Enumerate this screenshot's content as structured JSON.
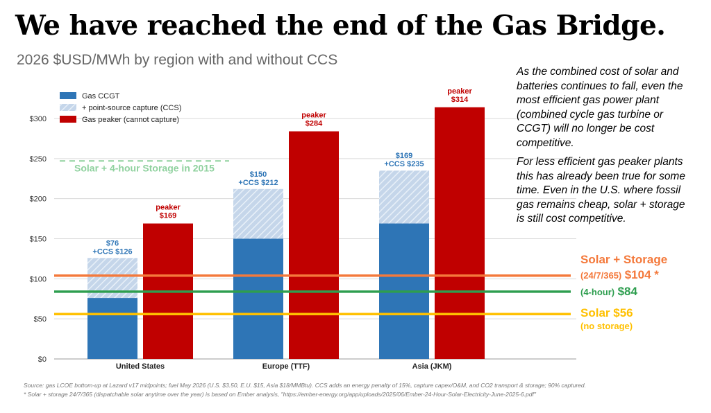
{
  "title": "We have reached the end of the Gas Bridge.",
  "subtitle": "2026 $USD/MWh by region with and without CCS",
  "side_text": {
    "p1": "As the combined cost of solar and batteries continues to fall, even the most efficient gas power plant (combined cycle gas turbine or CCGT) will no longer be cost competitive.",
    "p2": "For less efficient gas peaker plants this has already been true for some time. Even in the U.S. where fossil gas remains cheap, solar + storage is still cost competitive."
  },
  "reference_labels": {
    "storage_title": "Solar + Storage",
    "storage_247_prefix": "(24/7/365)",
    "storage_247_value": "$104 *",
    "storage_4h_prefix": "(4-hour)",
    "storage_4h_value": "$84",
    "solar_title": "Solar $56",
    "solar_sub": "(no storage)",
    "solar_2015": "Solar + 4-hour Storage in 2015"
  },
  "source_lines": [
    "Source: gas LCOE bottom-up at Lazard v17 midpoints; fuel May 2026 (U.S. $3.50, E.U. $15, Asia $18/MMBtu). CCS adds an energy penalty of 15%, capture capex/O&M, and CO2 transport & storage; 90% captured.",
    "* Solar + storage 24/7/365 (dispatchable solar anytime over the year) is based on Ember analysis, \"https://ember-energy.org/app/uploads/2025/06/Ember-24-Hour-Solar-Electricity-June-2025-6.pdf\""
  ],
  "colors": {
    "ccgt": "#2e75b6",
    "ccs": "#c5d6ea",
    "peaker": "#c00000",
    "solar_storage_247": "#f4793b",
    "storage_4h": "#2e9e4f",
    "solar": "#ffc000",
    "solar_2015": "#8fd19e",
    "ccgt_label": "#2e75b6",
    "peaker_label": "#c00000"
  },
  "chart_data": {
    "type": "bar",
    "categories": [
      "United States",
      "Europe (TTF)",
      "Asia (JKM)"
    ],
    "series": [
      {
        "name": "Gas CCGT",
        "values": [
          76,
          150,
          169
        ]
      },
      {
        "name": "+ point-source capture (CCS)",
        "values": [
          126,
          212,
          235
        ]
      },
      {
        "name": "Gas peaker (cannot capture)",
        "values": [
          169,
          284,
          314
        ]
      }
    ],
    "data_labels": {
      "ccgt": [
        "$76",
        "$150",
        "$169"
      ],
      "ccs": [
        "+CCS $126",
        "+CCS $212",
        "+CCS $235"
      ],
      "peaker_word": "peaker",
      "peaker": [
        "$169",
        "$284",
        "$314"
      ]
    },
    "reference_lines": [
      {
        "value": 104
      },
      {
        "value": 84
      },
      {
        "value": 56
      },
      {
        "value": 247
      }
    ],
    "yticks": [
      "$0",
      "$50",
      "$100",
      "$150",
      "$200",
      "$250",
      "$300"
    ],
    "tick_values": [
      0,
      50,
      100,
      150,
      200,
      250,
      300
    ],
    "ylim": [
      0,
      300
    ],
    "grid": true,
    "legend_position": "top-left"
  }
}
